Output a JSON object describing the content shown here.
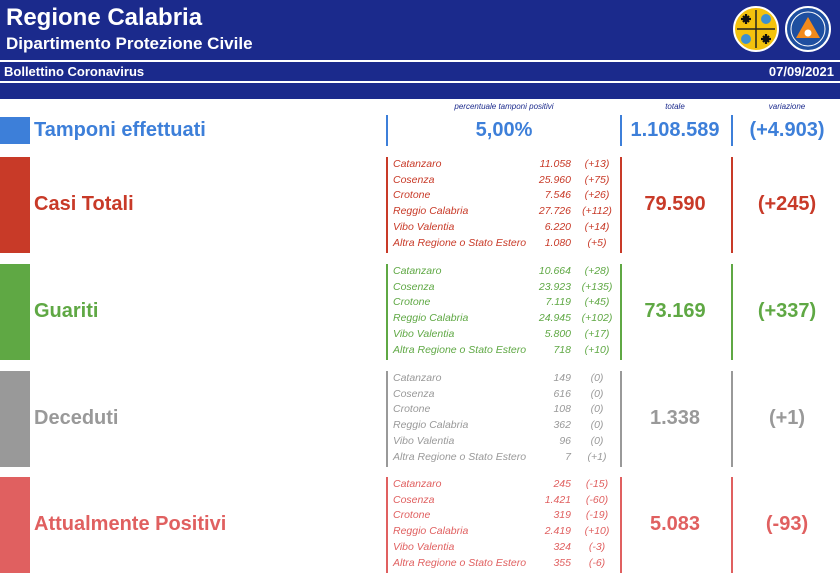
{
  "header": {
    "title": "Regione Calabria",
    "subtitle": "Dipartimento Protezione Civile"
  },
  "logos": {
    "region": "calabria-coat-of-arms",
    "civil": "protezione-civile-logo",
    "civil_text": "PROTEZIONE CIVILE"
  },
  "bulletin": {
    "label": "Bollettino Coronavirus",
    "date": "07/09/2021"
  },
  "columns": {
    "perc": "percentuale tamponi positivi",
    "total": "totale",
    "change": "variazione"
  },
  "tamponi": {
    "label": "Tamponi effettuati",
    "perc": "5,00%",
    "total": "1.108.589",
    "change": "(+4.903)",
    "color": "#3d7fd9"
  },
  "sections": [
    {
      "key": "casi",
      "label": "Casi Totali",
      "color": "#c83a28",
      "total": "79.590",
      "change": "(+245)",
      "provinces": [
        {
          "name": "Catanzaro",
          "value": "11.058",
          "change": "(+13)"
        },
        {
          "name": "Cosenza",
          "value": "25.960",
          "change": "(+75)"
        },
        {
          "name": "Crotone",
          "value": "7.546",
          "change": "(+26)"
        },
        {
          "name": "Reggio Calabria",
          "value": "27.726",
          "change": "(+112)"
        },
        {
          "name": "Vibo Valentia",
          "value": "6.220",
          "change": "(+14)"
        },
        {
          "name": "Altra Regione o Stato Estero",
          "value": "1.080",
          "change": "(+5)"
        }
      ]
    },
    {
      "key": "guariti",
      "label": "Guariti",
      "color": "#5fa844",
      "total": "73.169",
      "change": "(+337)",
      "provinces": [
        {
          "name": "Catanzaro",
          "value": "10.664",
          "change": "(+28)"
        },
        {
          "name": "Cosenza",
          "value": "23.923",
          "change": "(+135)"
        },
        {
          "name": "Crotone",
          "value": "7.119",
          "change": "(+45)"
        },
        {
          "name": "Reggio Calabria",
          "value": "24.945",
          "change": "(+102)"
        },
        {
          "name": "Vibo Valentia",
          "value": "5.800",
          "change": "(+17)"
        },
        {
          "name": "Altra Regione o Stato Estero",
          "value": "718",
          "change": "(+10)"
        }
      ]
    },
    {
      "key": "deceduti",
      "label": "Deceduti",
      "color": "#999999",
      "total": "1.338",
      "change": "(+1)",
      "provinces": [
        {
          "name": "Catanzaro",
          "value": "149",
          "change": "(0)"
        },
        {
          "name": "Cosenza",
          "value": "616",
          "change": "(0)"
        },
        {
          "name": "Crotone",
          "value": "108",
          "change": "(0)"
        },
        {
          "name": "Reggio Calabria",
          "value": "362",
          "change": "(0)"
        },
        {
          "name": "Vibo Valentia",
          "value": "96",
          "change": "(0)"
        },
        {
          "name": "Altra Regione o Stato Estero",
          "value": "7",
          "change": "(+1)"
        }
      ]
    },
    {
      "key": "positivi",
      "label": "Attualmente Positivi",
      "color": "#e06060",
      "total": "5.083",
      "change": "(-93)",
      "provinces": [
        {
          "name": "Catanzaro",
          "value": "245",
          "change": "(-15)"
        },
        {
          "name": "Cosenza",
          "value": "1.421",
          "change": "(-60)"
        },
        {
          "name": "Crotone",
          "value": "319",
          "change": "(-19)"
        },
        {
          "name": "Reggio Calabria",
          "value": "2.419",
          "change": "(+10)"
        },
        {
          "name": "Vibo Valentia",
          "value": "324",
          "change": "(-3)"
        },
        {
          "name": "Altra Regione o Stato Estero",
          "value": "355",
          "change": "(-6)"
        }
      ]
    }
  ]
}
